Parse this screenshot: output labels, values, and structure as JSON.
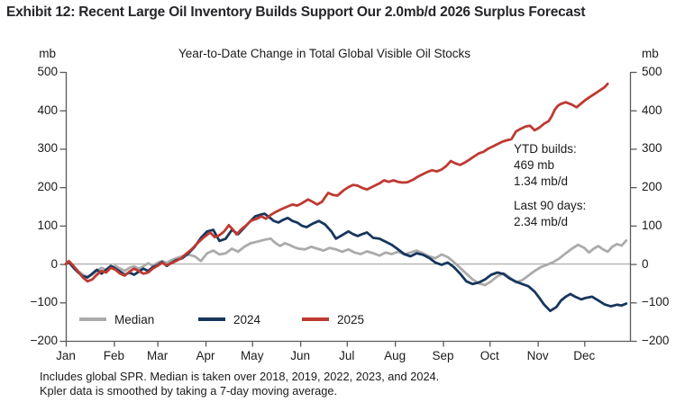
{
  "exhibit_title": "Exhibit 12: Recent Large Oil Inventory Builds Support Our 2.0mb/d 2026 Surplus Forecast",
  "footnotes": [
    "Includes global SPR. Median is taken over 2018, 2019, 2022, 2023, and 2024.",
    "Kpler data is smoothed by taking a 7-day moving average."
  ],
  "chart_data": {
    "type": "line",
    "title": "Year-to-Date Change in Total Global Visible Oil Stocks",
    "xlabel": "",
    "ylabel": "mb",
    "unit": "mb",
    "ylim": [
      -200,
      500
    ],
    "y_ticks": [
      500,
      400,
      300,
      200,
      100,
      0,
      -100,
      -200
    ],
    "x_tick_labels": [
      "Jan",
      "Feb",
      "Mar",
      "Apr",
      "May",
      "Jun",
      "Jul",
      "Aug",
      "Sep",
      "Oct",
      "Nov",
      "Dec"
    ],
    "month_start_days": [
      1,
      32,
      60,
      91,
      121,
      152,
      182,
      213,
      244,
      274,
      305,
      335
    ],
    "grid": "zero-line-only",
    "legend_position": "bottom-left-inside",
    "axis_color": "#5a5a5c",
    "zero_line_color": "#9b9b9b",
    "annotation": {
      "line1": "YTD builds:",
      "line2": "469 mb",
      "line3": "1.34 mb/d",
      "line4": "Last 90 days:",
      "line5": "2.34 mb/d"
    },
    "series": [
      {
        "name": "Median",
        "color": "#ABABAB",
        "points": [
          [
            1,
            0
          ],
          [
            3,
            3
          ],
          [
            6,
            -8
          ],
          [
            9,
            -18
          ],
          [
            12,
            -28
          ],
          [
            15,
            -33
          ],
          [
            18,
            -28
          ],
          [
            21,
            -18
          ],
          [
            24,
            -10
          ],
          [
            27,
            -15
          ],
          [
            30,
            -8
          ],
          [
            33,
            -5
          ],
          [
            36,
            -12
          ],
          [
            39,
            -18
          ],
          [
            42,
            -10
          ],
          [
            45,
            -6
          ],
          [
            48,
            -12
          ],
          [
            51,
            -6
          ],
          [
            54,
            2
          ],
          [
            57,
            -4
          ],
          [
            60,
            3
          ],
          [
            63,
            8
          ],
          [
            66,
            3
          ],
          [
            69,
            10
          ],
          [
            72,
            15
          ],
          [
            76,
            20
          ],
          [
            80,
            24
          ],
          [
            84,
            20
          ],
          [
            88,
            8
          ],
          [
            92,
            28
          ],
          [
            96,
            35
          ],
          [
            100,
            25
          ],
          [
            104,
            28
          ],
          [
            108,
            40
          ],
          [
            112,
            32
          ],
          [
            116,
            45
          ],
          [
            120,
            54
          ],
          [
            124,
            58
          ],
          [
            127,
            61
          ],
          [
            130,
            64
          ],
          [
            133,
            66
          ],
          [
            136,
            55
          ],
          [
            139,
            47
          ],
          [
            142,
            54
          ],
          [
            145,
            50
          ],
          [
            148,
            44
          ],
          [
            151,
            40
          ],
          [
            155,
            38
          ],
          [
            159,
            45
          ],
          [
            163,
            40
          ],
          [
            167,
            35
          ],
          [
            171,
            42
          ],
          [
            175,
            38
          ],
          [
            179,
            32
          ],
          [
            183,
            38
          ],
          [
            187,
            30
          ],
          [
            191,
            26
          ],
          [
            195,
            33
          ],
          [
            199,
            28
          ],
          [
            203,
            22
          ],
          [
            207,
            30
          ],
          [
            211,
            26
          ],
          [
            215,
            32
          ],
          [
            219,
            25
          ],
          [
            223,
            30
          ],
          [
            227,
            35
          ],
          [
            231,
            28
          ],
          [
            235,
            20
          ],
          [
            239,
            15
          ],
          [
            243,
            25
          ],
          [
            247,
            18
          ],
          [
            251,
            5
          ],
          [
            255,
            -10
          ],
          [
            259,
            -25
          ],
          [
            263,
            -40
          ],
          [
            267,
            -50
          ],
          [
            271,
            -55
          ],
          [
            275,
            -45
          ],
          [
            279,
            -32
          ],
          [
            283,
            -24
          ],
          [
            287,
            -35
          ],
          [
            291,
            -48
          ],
          [
            295,
            -42
          ],
          [
            299,
            -30
          ],
          [
            303,
            -18
          ],
          [
            307,
            -8
          ],
          [
            311,
            -2
          ],
          [
            315,
            5
          ],
          [
            319,
            15
          ],
          [
            323,
            28
          ],
          [
            327,
            40
          ],
          [
            331,
            50
          ],
          [
            335,
            42
          ],
          [
            338,
            30
          ],
          [
            341,
            40
          ],
          [
            344,
            47
          ],
          [
            347,
            38
          ],
          [
            350,
            32
          ],
          [
            353,
            45
          ],
          [
            356,
            52
          ],
          [
            359,
            48
          ],
          [
            362,
            61
          ]
        ]
      },
      {
        "name": "2024",
        "color": "#17365D",
        "points": [
          [
            1,
            0
          ],
          [
            3,
            5
          ],
          [
            6,
            -10
          ],
          [
            9,
            -22
          ],
          [
            12,
            -32
          ],
          [
            15,
            -35
          ],
          [
            18,
            -25
          ],
          [
            21,
            -15
          ],
          [
            24,
            -25
          ],
          [
            27,
            -15
          ],
          [
            30,
            -5
          ],
          [
            33,
            -12
          ],
          [
            36,
            -20
          ],
          [
            39,
            -28
          ],
          [
            42,
            -22
          ],
          [
            45,
            -28
          ],
          [
            48,
            -20
          ],
          [
            51,
            -12
          ],
          [
            54,
            -18
          ],
          [
            57,
            -8
          ],
          [
            60,
            -3
          ],
          [
            63,
            5
          ],
          [
            66,
            -5
          ],
          [
            69,
            3
          ],
          [
            72,
            10
          ],
          [
            76,
            15
          ],
          [
            80,
            28
          ],
          [
            84,
            45
          ],
          [
            88,
            68
          ],
          [
            92,
            85
          ],
          [
            96,
            89
          ],
          [
            100,
            60
          ],
          [
            104,
            66
          ],
          [
            108,
            89
          ],
          [
            112,
            78
          ],
          [
            116,
            95
          ],
          [
            120,
            112
          ],
          [
            123,
            124
          ],
          [
            126,
            128
          ],
          [
            129,
            131
          ],
          [
            132,
            122
          ],
          [
            135,
            112
          ],
          [
            138,
            108
          ],
          [
            141,
            115
          ],
          [
            144,
            120
          ],
          [
            147,
            112
          ],
          [
            150,
            108
          ],
          [
            153,
            100
          ],
          [
            156,
            96
          ],
          [
            160,
            105
          ],
          [
            164,
            112
          ],
          [
            168,
            103
          ],
          [
            172,
            85
          ],
          [
            175,
            66
          ],
          [
            179,
            75
          ],
          [
            183,
            85
          ],
          [
            186,
            78
          ],
          [
            189,
            73
          ],
          [
            192,
            78
          ],
          [
            195,
            82
          ],
          [
            199,
            68
          ],
          [
            203,
            66
          ],
          [
            207,
            58
          ],
          [
            211,
            50
          ],
          [
            215,
            38
          ],
          [
            219,
            26
          ],
          [
            223,
            20
          ],
          [
            227,
            28
          ],
          [
            231,
            24
          ],
          [
            235,
            16
          ],
          [
            239,
            4
          ],
          [
            243,
            -2
          ],
          [
            247,
            4
          ],
          [
            251,
            -8
          ],
          [
            255,
            -25
          ],
          [
            259,
            -45
          ],
          [
            263,
            -52
          ],
          [
            267,
            -48
          ],
          [
            271,
            -40
          ],
          [
            275,
            -28
          ],
          [
            279,
            -22
          ],
          [
            283,
            -26
          ],
          [
            287,
            -38
          ],
          [
            291,
            -46
          ],
          [
            295,
            -52
          ],
          [
            299,
            -58
          ],
          [
            303,
            -72
          ],
          [
            306,
            -88
          ],
          [
            309,
            -105
          ],
          [
            313,
            -122
          ],
          [
            317,
            -112
          ],
          [
            320,
            -95
          ],
          [
            323,
            -85
          ],
          [
            326,
            -78
          ],
          [
            329,
            -85
          ],
          [
            333,
            -92
          ],
          [
            336,
            -88
          ],
          [
            340,
            -85
          ],
          [
            344,
            -95
          ],
          [
            348,
            -105
          ],
          [
            352,
            -110
          ],
          [
            356,
            -106
          ],
          [
            359,
            -108
          ],
          [
            362,
            -103
          ]
        ]
      },
      {
        "name": "2025",
        "color": "#BE3A32",
        "points": [
          [
            1,
            0
          ],
          [
            3,
            8
          ],
          [
            6,
            -5
          ],
          [
            9,
            -20
          ],
          [
            12,
            -35
          ],
          [
            15,
            -45
          ],
          [
            18,
            -40
          ],
          [
            21,
            -28
          ],
          [
            24,
            -18
          ],
          [
            27,
            -22
          ],
          [
            30,
            -10
          ],
          [
            33,
            -15
          ],
          [
            36,
            -25
          ],
          [
            39,
            -30
          ],
          [
            42,
            -20
          ],
          [
            45,
            -12
          ],
          [
            48,
            -18
          ],
          [
            51,
            -25
          ],
          [
            54,
            -22
          ],
          [
            57,
            -12
          ],
          [
            60,
            -5
          ],
          [
            63,
            3
          ],
          [
            66,
            -3
          ],
          [
            69,
            2
          ],
          [
            72,
            8
          ],
          [
            75,
            14
          ],
          [
            78,
            25
          ],
          [
            82,
            38
          ],
          [
            86,
            55
          ],
          [
            90,
            70
          ],
          [
            94,
            82
          ],
          [
            97,
            70
          ],
          [
            100,
            75
          ],
          [
            103,
            85
          ],
          [
            106,
            101
          ],
          [
            109,
            88
          ],
          [
            111,
            77
          ],
          [
            114,
            90
          ],
          [
            117,
            100
          ],
          [
            120,
            112
          ],
          [
            124,
            118
          ],
          [
            127,
            124
          ],
          [
            130,
            118
          ],
          [
            133,
            128
          ],
          [
            136,
            135
          ],
          [
            140,
            143
          ],
          [
            144,
            150
          ],
          [
            147,
            155
          ],
          [
            150,
            152
          ],
          [
            153,
            158
          ],
          [
            157,
            168
          ],
          [
            160,
            162
          ],
          [
            163,
            155
          ],
          [
            166,
            162
          ],
          [
            170,
            185
          ],
          [
            173,
            180
          ],
          [
            176,
            178
          ],
          [
            180,
            192
          ],
          [
            183,
            200
          ],
          [
            186,
            206
          ],
          [
            189,
            204
          ],
          [
            192,
            198
          ],
          [
            195,
            194
          ],
          [
            199,
            202
          ],
          [
            203,
            210
          ],
          [
            206,
            218
          ],
          [
            209,
            214
          ],
          [
            212,
            218
          ],
          [
            215,
            214
          ],
          [
            218,
            212
          ],
          [
            221,
            213
          ],
          [
            225,
            220
          ],
          [
            228,
            228
          ],
          [
            231,
            234
          ],
          [
            234,
            240
          ],
          [
            237,
            244
          ],
          [
            240,
            241
          ],
          [
            243,
            246
          ],
          [
            246,
            255
          ],
          [
            249,
            268
          ],
          [
            252,
            262
          ],
          [
            255,
            258
          ],
          [
            258,
            264
          ],
          [
            261,
            272
          ],
          [
            264,
            280
          ],
          [
            267,
            288
          ],
          [
            270,
            292
          ],
          [
            273,
            300
          ],
          [
            276,
            306
          ],
          [
            279,
            312
          ],
          [
            282,
            318
          ],
          [
            285,
            322
          ],
          [
            288,
            325
          ],
          [
            291,
            345
          ],
          [
            294,
            352
          ],
          [
            297,
            358
          ],
          [
            300,
            360
          ],
          [
            303,
            348
          ],
          [
            306,
            355
          ],
          [
            309,
            365
          ],
          [
            312,
            372
          ],
          [
            314,
            385
          ],
          [
            316,
            402
          ],
          [
            318,
            412
          ],
          [
            320,
            417
          ],
          [
            323,
            421
          ],
          [
            327,
            415
          ],
          [
            330,
            408
          ],
          [
            333,
            418
          ],
          [
            336,
            428
          ],
          [
            339,
            436
          ],
          [
            342,
            444
          ],
          [
            345,
            452
          ],
          [
            348,
            460
          ],
          [
            350,
            469
          ]
        ]
      }
    ]
  }
}
